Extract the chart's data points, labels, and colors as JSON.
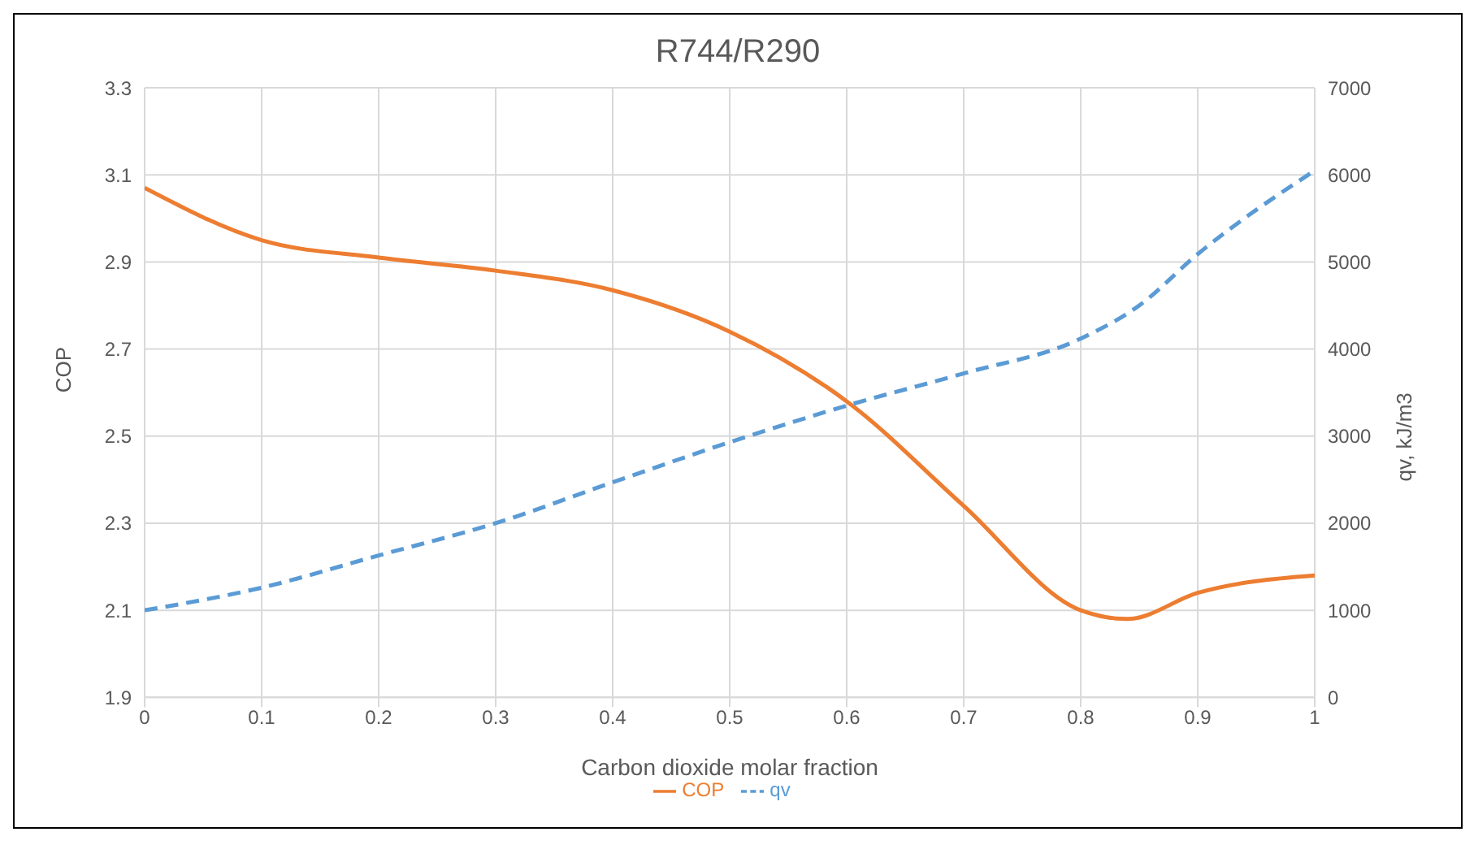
{
  "chart_data": {
    "type": "line",
    "title": "R744/R290",
    "xlabel": "Carbon dioxide molar fraction",
    "ylabel": "COP",
    "y2label": "qv, kJ/m3",
    "xlim": [
      0,
      1
    ],
    "xticks": [
      0,
      0.1,
      0.2,
      0.3,
      0.4,
      0.5,
      0.6,
      0.7,
      0.8,
      0.9,
      1
    ],
    "ylim": [
      1.9,
      3.3
    ],
    "yticks": [
      1.9,
      2.1,
      2.3,
      2.5,
      2.7,
      2.9,
      3.1,
      3.3
    ],
    "y2lim": [
      0,
      7000
    ],
    "y2ticks": [
      0,
      1000,
      2000,
      3000,
      4000,
      5000,
      6000,
      7000
    ],
    "grid": true,
    "legend": "bottom",
    "marker": "none",
    "series": [
      {
        "name": "COP",
        "color": "#ed7d31",
        "line_style": "solid",
        "x": [
          0,
          0.1,
          0.2,
          0.3,
          0.4,
          0.5,
          0.6,
          0.7,
          0.8,
          0.84,
          0.9,
          1
        ],
        "values": [
          3.07,
          2.95,
          2.91,
          2.88,
          2.835,
          2.74,
          2.58,
          2.34,
          2.1,
          2.08,
          2.14,
          2.18
        ]
      },
      {
        "name": "qv",
        "color": "#5b9bd5",
        "line_style": "dashed",
        "axis": "y2",
        "x": [
          0,
          0.1,
          0.2,
          0.3,
          0.4,
          0.5,
          0.6,
          0.7,
          0.8,
          0.85,
          0.9,
          1
        ],
        "values": [
          1000,
          1260,
          1630,
          2000,
          2470,
          2930,
          3350,
          3720,
          4120,
          4500,
          5090,
          6050
        ]
      }
    ]
  }
}
